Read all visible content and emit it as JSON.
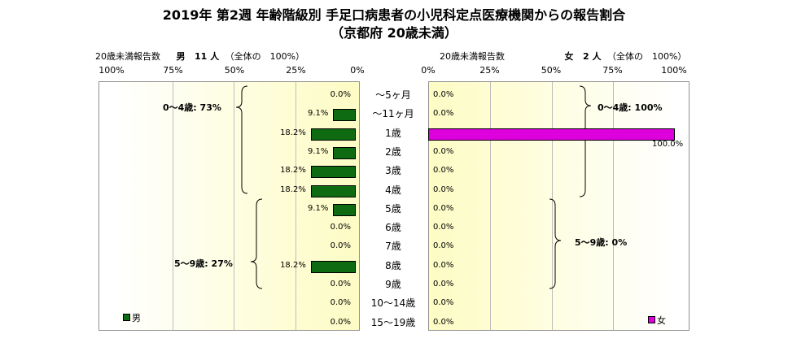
{
  "title": {
    "line1": "2019年 第2週 年齢階級別 手足口病患者の小児科定点医療機関からの報告割合",
    "line2": "（京都府 20歳未満）"
  },
  "male_header": {
    "caption": "20歳未満報告数",
    "label": "男",
    "count": "11 人",
    "note": "（全体の　100%）"
  },
  "female_header": {
    "caption": "20歳未満報告数",
    "label": "女",
    "count": "2 人",
    "note": "（全体の　100%）"
  },
  "male_axis_ticks": [
    "100%",
    "75%",
    "50%",
    "25%",
    "0%"
  ],
  "female_axis_ticks": [
    "0%",
    "25%",
    "50%",
    "75%",
    "100%"
  ],
  "legend": {
    "male": "男",
    "female": "女"
  },
  "colors": {
    "male": "#0e6b12",
    "female": "#dd00dd"
  },
  "groups": {
    "male_0_4": "0〜4歳: 73%",
    "male_5_9": "5〜9歳: 27%",
    "female_0_4": "0〜4歳: 100%",
    "female_5_9": "5〜9歳: 0%"
  },
  "chart_data": {
    "type": "bar",
    "orientation": "horizontal",
    "categories": [
      "〜5ヶ月",
      "〜11ヶ月",
      "1歳",
      "2歳",
      "3歳",
      "4歳",
      "5歳",
      "6歳",
      "7歳",
      "8歳",
      "9歳",
      "10〜14歳",
      "15〜19歳"
    ],
    "series": [
      {
        "name": "男",
        "values": [
          0.0,
          9.1,
          18.2,
          9.1,
          18.2,
          18.2,
          9.1,
          0.0,
          0.0,
          18.2,
          0.0,
          0.0,
          0.0
        ],
        "labels": [
          "0.0%",
          "9.1%",
          "18.2%",
          "9.1%",
          "18.2%",
          "18.2%",
          "9.1%",
          "0.0%",
          "0.0%",
          "18.2%",
          "0.0%",
          "0.0%",
          "0.0%"
        ]
      },
      {
        "name": "女",
        "values": [
          0.0,
          0.0,
          100.0,
          0.0,
          0.0,
          0.0,
          0.0,
          0.0,
          0.0,
          0.0,
          0.0,
          0.0,
          0.0
        ],
        "labels": [
          "0.0%",
          "0.0%",
          "100.0%",
          "0.0%",
          "0.0%",
          "0.0%",
          "0.0%",
          "0.0%",
          "0.0%",
          "0.0%",
          "0.0%",
          "0.0%",
          "0.0%"
        ]
      }
    ],
    "xlim": [
      0,
      100
    ],
    "grid": true
  }
}
